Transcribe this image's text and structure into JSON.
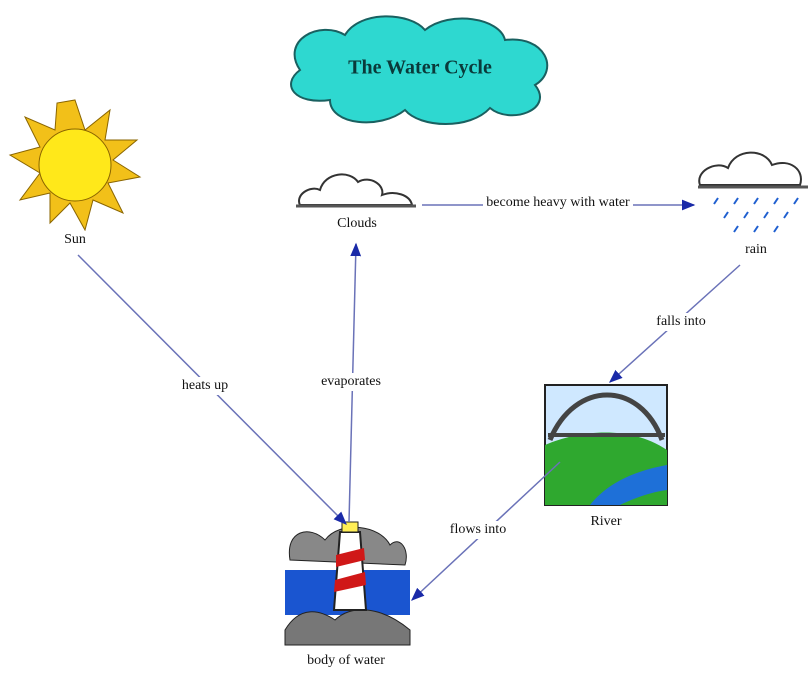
{
  "title": "The Water Cycle",
  "nodes": [
    {
      "label": "Sun"
    },
    {
      "label": "Clouds"
    },
    {
      "label": "rain"
    },
    {
      "label": "River"
    },
    {
      "label": "body of water"
    }
  ],
  "edges": [
    {
      "label": "heats up"
    },
    {
      "label": "evaporates"
    },
    {
      "label": "become heavy with water"
    },
    {
      "label": "falls into"
    },
    {
      "label": "flows into"
    }
  ]
}
